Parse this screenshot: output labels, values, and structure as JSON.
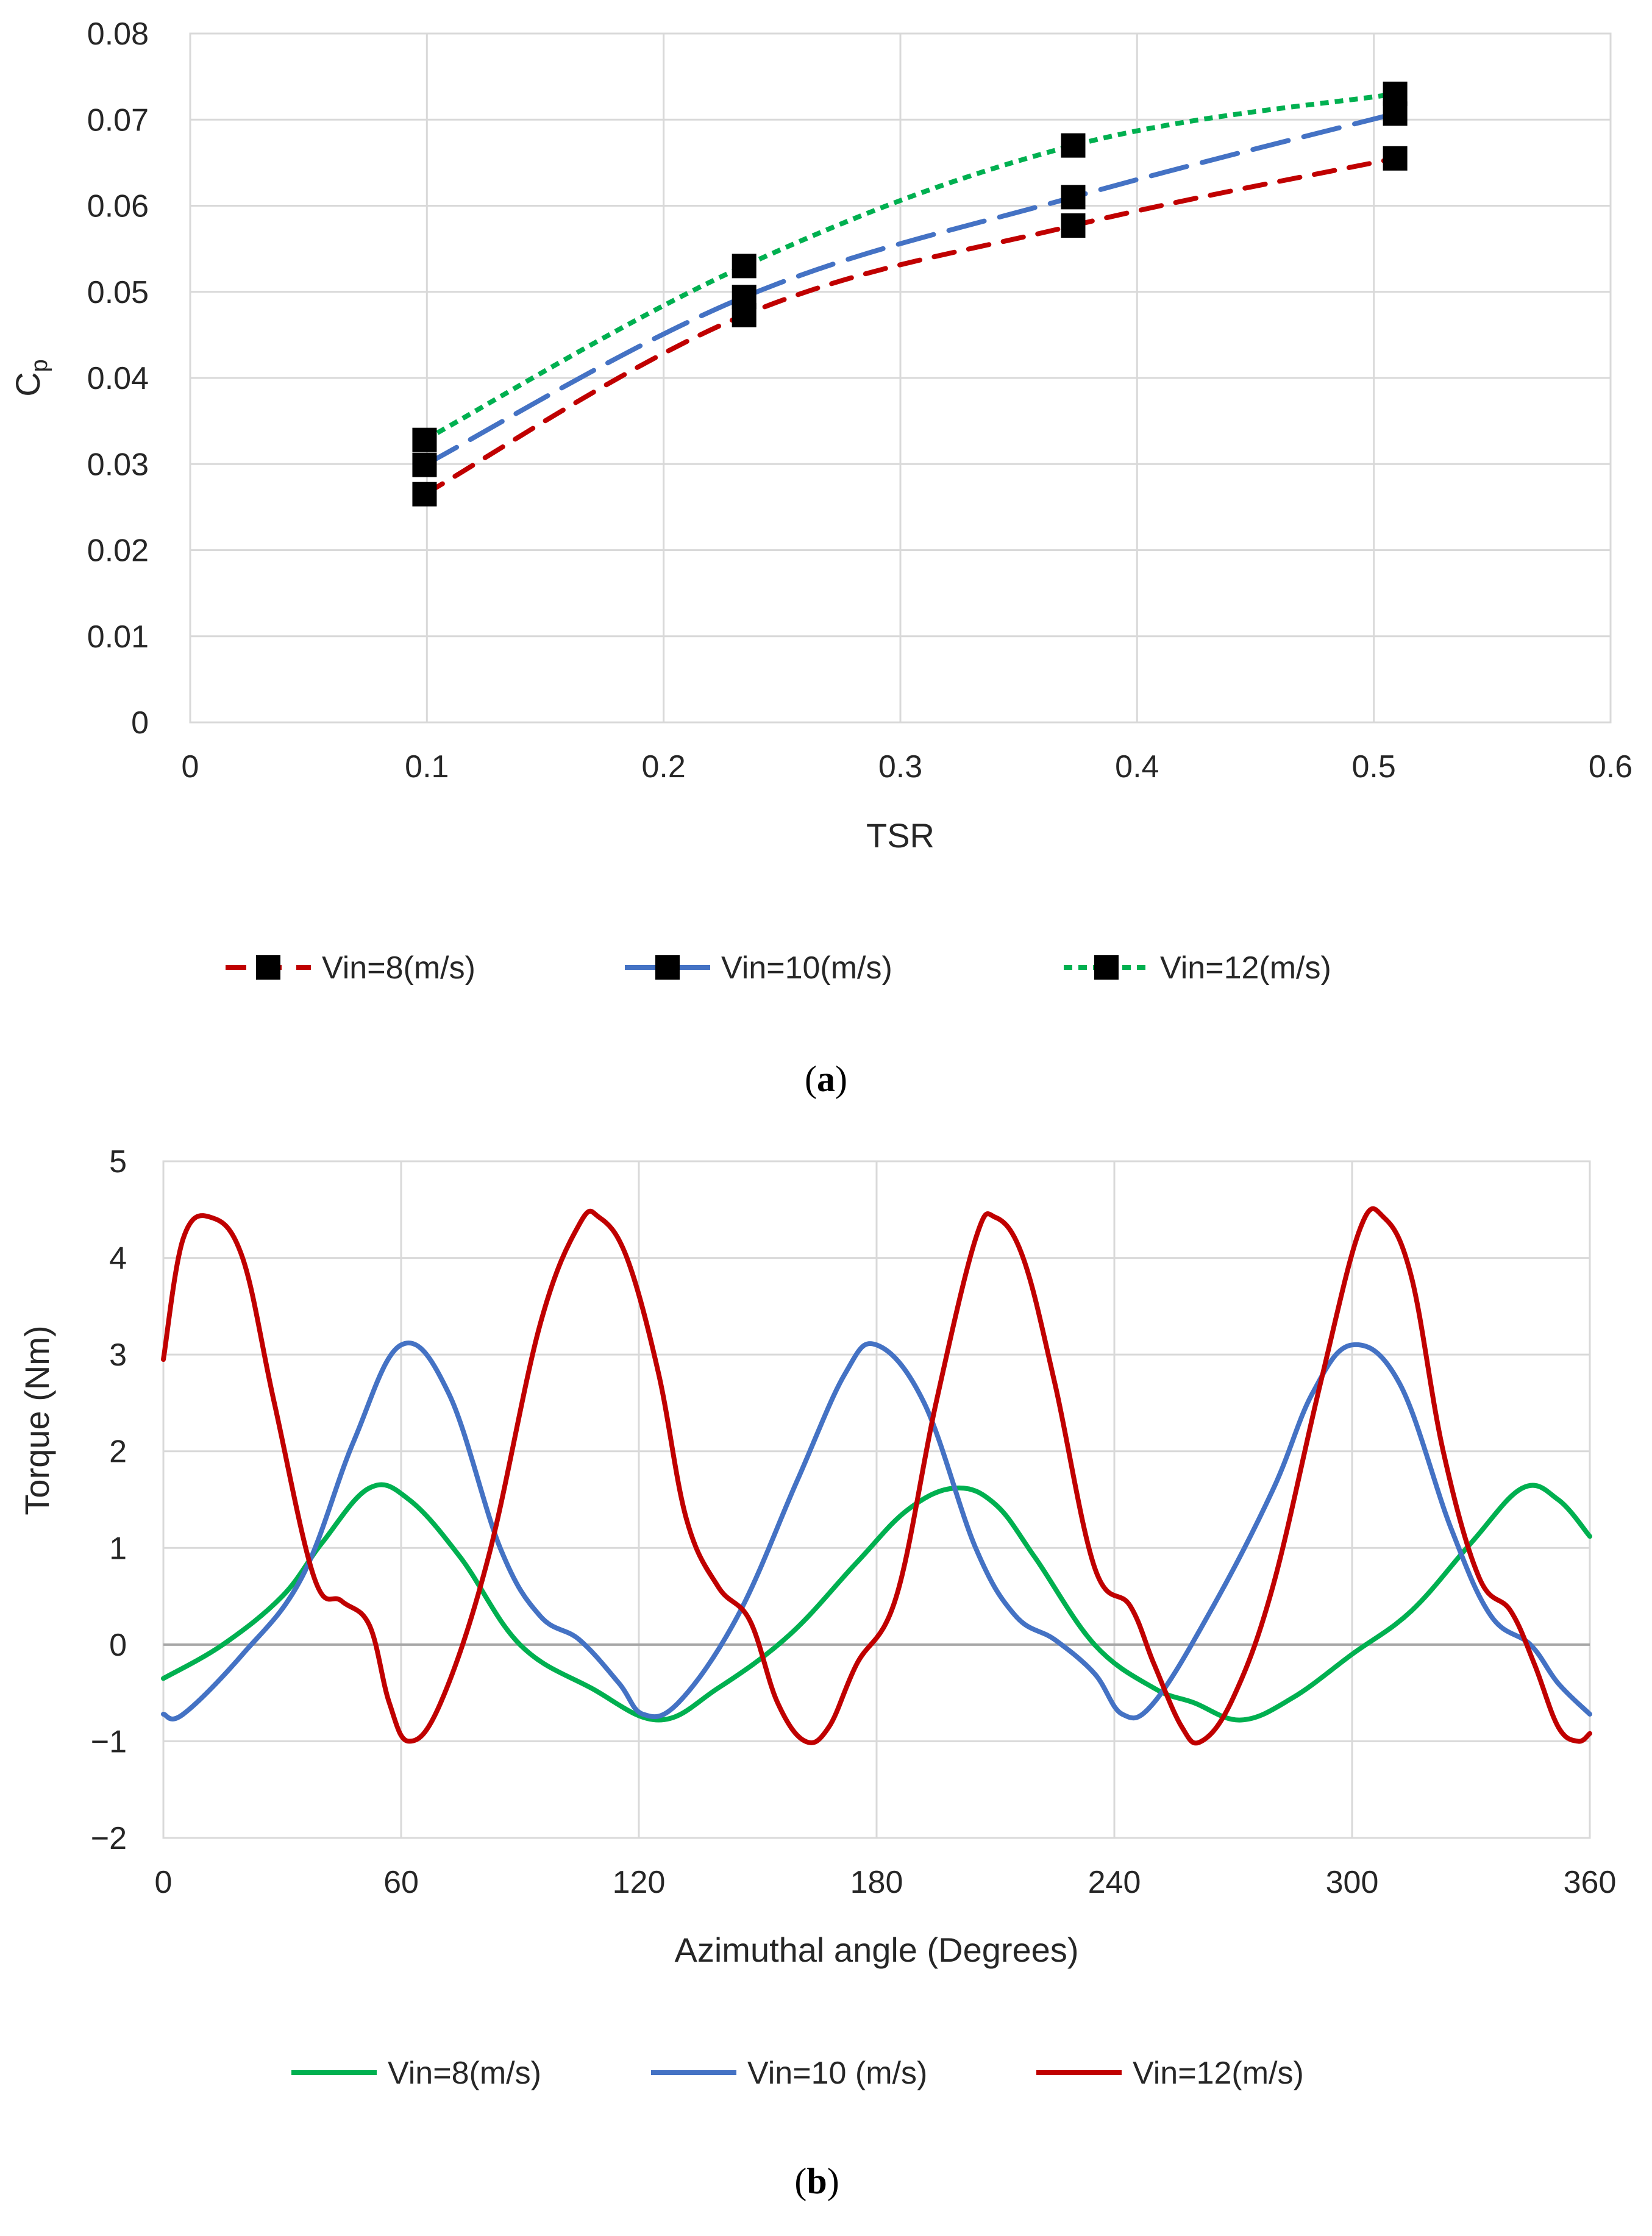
{
  "chart_data": [
    {
      "type": "line",
      "caption": "(a)",
      "caption_letter": "a",
      "title": "",
      "xlabel": "TSR",
      "ylabel_main": "C",
      "ylabel_sub": "p",
      "xlim": [
        0,
        0.6
      ],
      "ylim": [
        0,
        0.08
      ],
      "xticks": [
        0,
        0.1,
        0.2,
        0.3,
        0.4,
        0.5,
        0.6
      ],
      "xtick_labels": [
        "0",
        "0.1",
        "0.2",
        "0.3",
        "0.4",
        "0.5",
        "0.6"
      ],
      "yticks": [
        0,
        0.01,
        0.02,
        0.03,
        0.04,
        0.05,
        0.06,
        0.07,
        0.08
      ],
      "ytick_labels": [
        "0",
        "0.01",
        "0.02",
        "0.03",
        "0.04",
        "0.05",
        "0.06",
        "0.07",
        "0.08"
      ],
      "grid": true,
      "legend_position": "bottom",
      "series": [
        {
          "name": "Vin=8(m/s)",
          "color": "#C00000",
          "dash": "round-dash",
          "marker": "square",
          "x": [
            0.099,
            0.234,
            0.373,
            0.509
          ],
          "y": [
            0.0265,
            0.0473,
            0.0577,
            0.0655
          ]
        },
        {
          "name": "Vin=10(m/s)",
          "color": "#4472C4",
          "dash": "long-dash",
          "marker": "square",
          "x": [
            0.099,
            0.234,
            0.373,
            0.509
          ],
          "y": [
            0.0299,
            0.0494,
            0.061,
            0.0707
          ]
        },
        {
          "name": "Vin=12(m/s)",
          "color": "#00B050",
          "dash": "square-dot",
          "marker": "square",
          "x": [
            0.099,
            0.234,
            0.373,
            0.509
          ],
          "y": [
            0.0328,
            0.053,
            0.067,
            0.073
          ]
        }
      ]
    },
    {
      "type": "line",
      "caption": "(b)",
      "caption_letter": "b",
      "title": "",
      "xlabel": "Azimuthal angle (Degrees)",
      "ylabel": "Torque (Nm)",
      "xlim": [
        0,
        360
      ],
      "ylim": [
        -2,
        5
      ],
      "xticks": [
        0,
        60,
        120,
        180,
        240,
        300,
        360
      ],
      "xtick_labels": [
        "0",
        "60",
        "120",
        "180",
        "240",
        "300",
        "360"
      ],
      "yticks": [
        -2,
        -1,
        0,
        1,
        2,
        3,
        4,
        5
      ],
      "ytick_labels": [
        "−2",
        "−1",
        "0",
        "1",
        "2",
        "3",
        "4",
        "5"
      ],
      "grid": true,
      "legend_position": "bottom",
      "series": [
        {
          "name": "Vin=8(m/s)",
          "color": "#00B050",
          "x": [
            0,
            15,
            30,
            40,
            52,
            62,
            75,
            90,
            108,
            125,
            140,
            158,
            175,
            188,
            200,
            210,
            220,
            235,
            250,
            260,
            272,
            285,
            300,
            315,
            330,
            343,
            352,
            360
          ],
          "y": [
            -0.35,
            0.0,
            0.5,
            1.05,
            1.62,
            1.5,
            0.9,
            0.0,
            -0.45,
            -0.78,
            -0.45,
            0.1,
            0.85,
            1.4,
            1.62,
            1.45,
            0.9,
            0.0,
            -0.45,
            -0.6,
            -0.78,
            -0.55,
            -0.1,
            0.35,
            1.05,
            1.62,
            1.5,
            1.12
          ]
        },
        {
          "name": "Vin=10 (m/s)",
          "color": "#4472C4",
          "x": [
            0,
            5,
            20,
            35,
            48,
            60,
            72,
            85,
            95,
            105,
            115,
            121,
            130,
            145,
            160,
            172,
            180,
            192,
            205,
            215,
            225,
            235,
            242,
            250,
            265,
            280,
            290,
            300,
            312,
            325,
            335,
            345,
            352,
            360
          ],
          "y": [
            -0.72,
            -0.72,
            -0.1,
            0.7,
            2.1,
            3.1,
            2.6,
            1.0,
            0.3,
            0.05,
            -0.4,
            -0.72,
            -0.6,
            0.3,
            1.7,
            2.8,
            3.1,
            2.5,
            1.0,
            0.3,
            0.05,
            -0.3,
            -0.72,
            -0.6,
            0.4,
            1.6,
            2.6,
            3.1,
            2.7,
            1.2,
            0.3,
            0.0,
            -0.4,
            -0.72
          ]
        },
        {
          "name": "Vin=12(m/s)",
          "color": "#C00000",
          "x": [
            0,
            5,
            12,
            20,
            28,
            38,
            45,
            52,
            57,
            62,
            70,
            82,
            95,
            105,
            110,
            117,
            125,
            132,
            140,
            148,
            155,
            162,
            168,
            175,
            185,
            195,
            205,
            210,
            217,
            225,
            235,
            244,
            250,
            257,
            262,
            270,
            280,
            292,
            302,
            308,
            315,
            323,
            332,
            340,
            346,
            352,
            357,
            360
          ],
          "y": [
            2.95,
            4.2,
            4.42,
            4.0,
            2.5,
            0.7,
            0.45,
            0.2,
            -0.6,
            -1.0,
            -0.6,
            0.9,
            3.3,
            4.35,
            4.42,
            4.0,
            2.8,
            1.3,
            0.6,
            0.25,
            -0.6,
            -1.0,
            -0.85,
            -0.2,
            0.5,
            2.5,
            4.2,
            4.42,
            4.0,
            2.7,
            0.8,
            0.4,
            -0.2,
            -0.85,
            -1.0,
            -0.55,
            0.6,
            2.7,
            4.3,
            4.42,
            3.8,
            2.0,
            0.7,
            0.35,
            -0.2,
            -0.85,
            -1.0,
            -0.92
          ]
        }
      ]
    }
  ]
}
